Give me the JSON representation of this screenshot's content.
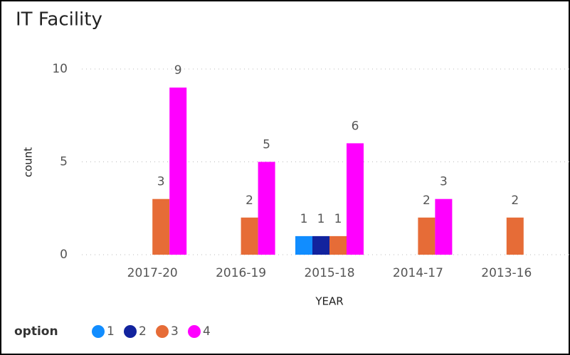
{
  "chart_data": {
    "type": "bar",
    "title": "IT Facility",
    "x_label": "YEAR",
    "y_label": "count",
    "categories": [
      "2017-20",
      "2016-19",
      "2015-18",
      "2014-17",
      "2013-16"
    ],
    "legend_title": "option",
    "series": [
      {
        "name": "1",
        "color": "#118dff",
        "values": [
          null,
          null,
          1,
          null,
          null
        ]
      },
      {
        "name": "2",
        "color": "#12239e",
        "values": [
          null,
          null,
          1,
          null,
          null
        ]
      },
      {
        "name": "3",
        "color": "#e66c37",
        "values": [
          3,
          2,
          1,
          2,
          2
        ]
      },
      {
        "name": "4",
        "color": "#ff00ff",
        "values": [
          9,
          5,
          6,
          3,
          null
        ]
      }
    ],
    "ylim": [
      0,
      10
    ],
    "yticks": [
      0,
      5,
      10
    ],
    "grid": true,
    "legend": "bottom-left"
  }
}
